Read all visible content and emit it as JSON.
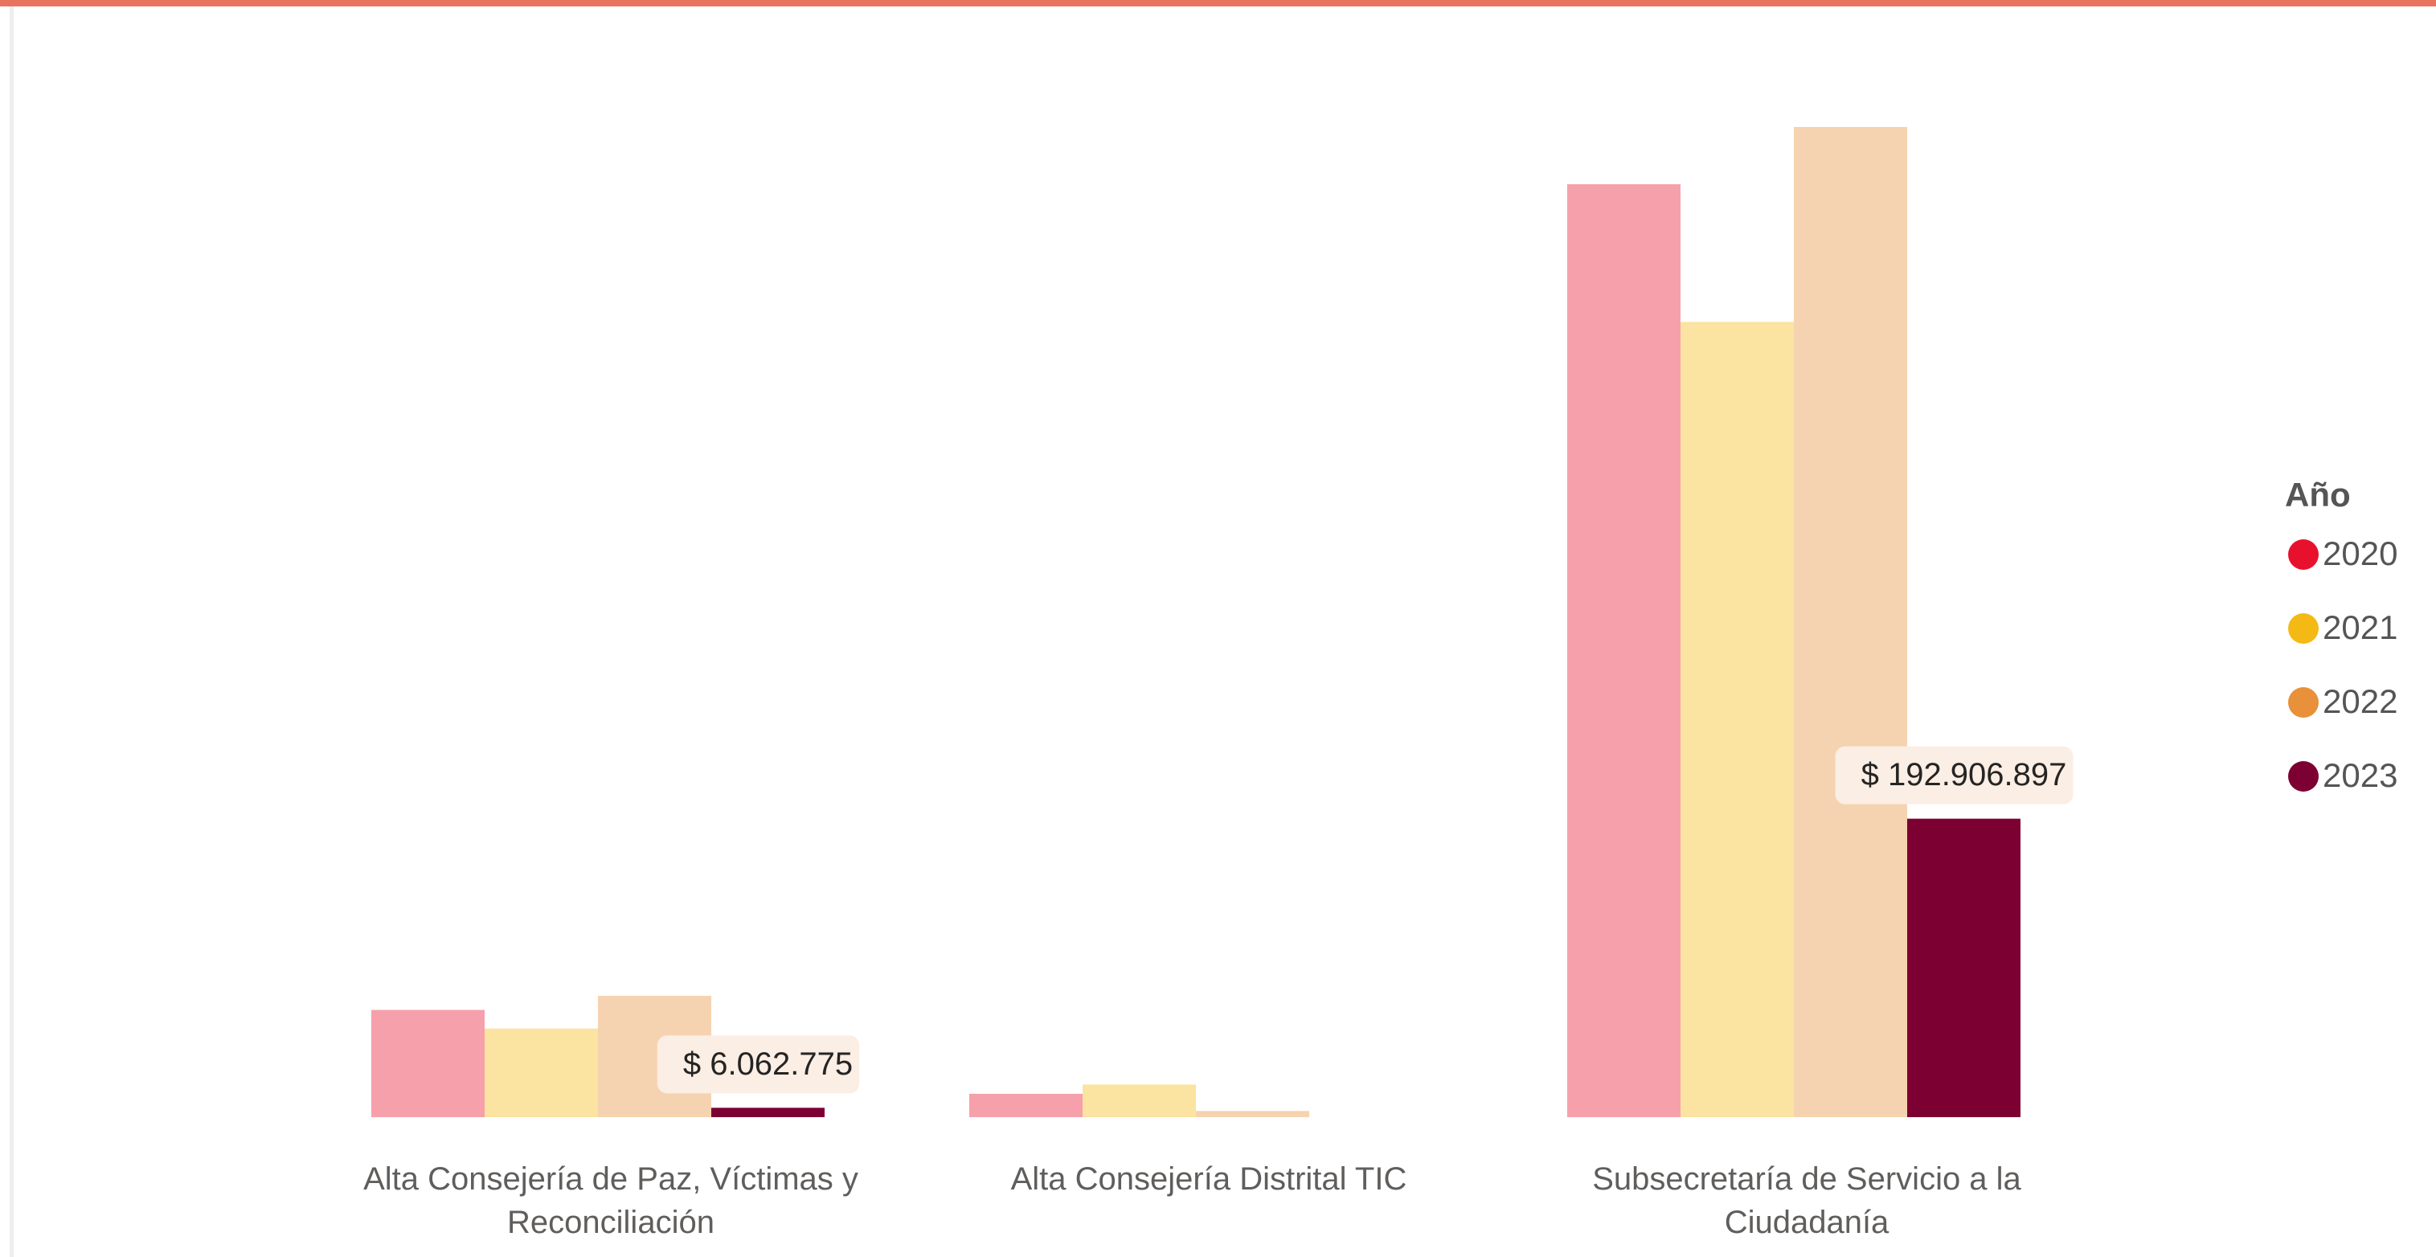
{
  "chart_data": {
    "type": "bar",
    "categories": [
      "Alta Consejería de Paz, Víctimas y Reconciliación",
      "Alta Consejería Distrital TIC",
      "Subsecretaría de Servicio a la Ciudadanía"
    ],
    "legend_title": "Año",
    "legend": "right",
    "highlight": "2023",
    "series": [
      {
        "name": "2020",
        "color": "#e8112d",
        "values": [
          69300000,
          15100000,
          603000000
        ]
      },
      {
        "name": "2021",
        "color": "#f5b915",
        "values": [
          57300000,
          21100000,
          514000000
        ]
      },
      {
        "name": "2022",
        "color": "#e8903a",
        "values": [
          78400000,
          4000000,
          640000000
        ]
      },
      {
        "name": "2023",
        "color": "#7d0033",
        "values": [
          6062775,
          null,
          192906897
        ],
        "value_labels": [
          "$ 6.062.775",
          null,
          "$ 192.906.897"
        ]
      }
    ]
  }
}
